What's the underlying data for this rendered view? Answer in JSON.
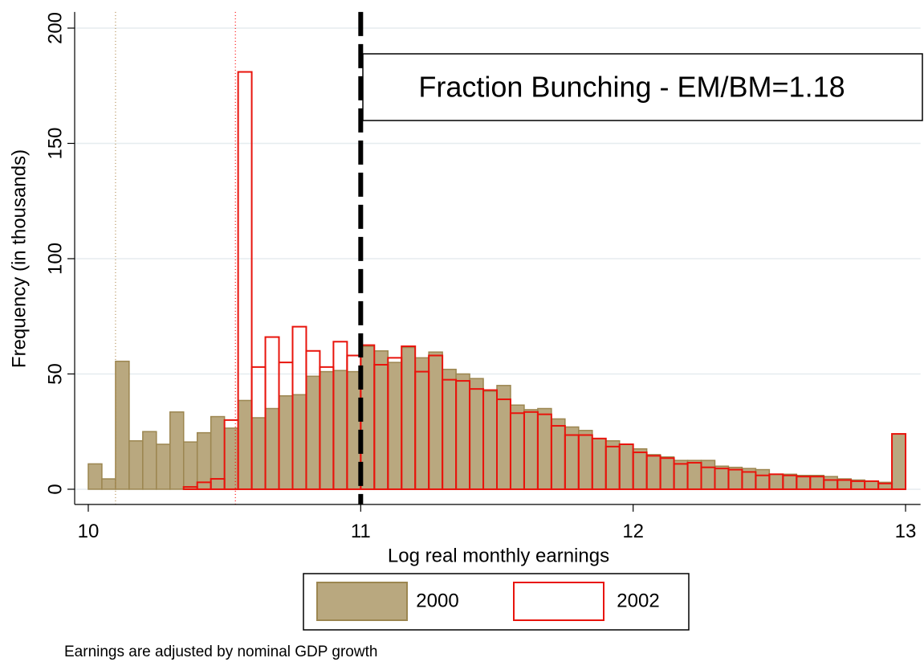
{
  "chart_data": {
    "type": "histogram",
    "x_label": "Log real monthly earnings",
    "y_label": "Frequency (in thousands)",
    "annotation": "Fraction Bunching - EM/BM=1.18",
    "note": "Earnings are adjusted by nominal GDP growth",
    "bins": [
      10,
      10.05,
      10.1,
      10.15,
      10.2,
      10.25,
      10.3,
      10.35,
      10.4,
      10.45,
      10.5,
      10.55,
      10.6,
      10.65,
      10.7,
      10.75,
      10.8,
      10.85,
      10.9,
      10.95,
      11,
      11.05,
      11.1,
      11.15,
      11.2,
      11.25,
      11.3,
      11.35,
      11.4,
      11.45,
      11.5,
      11.55,
      11.6,
      11.65,
      11.7,
      11.75,
      11.8,
      11.85,
      11.9,
      11.95,
      12,
      12.05,
      12.1,
      12.15,
      12.2,
      12.25,
      12.3,
      12.35,
      12.4,
      12.45,
      12.5,
      12.55,
      12.6,
      12.65,
      12.7,
      12.75,
      12.8,
      12.85,
      12.9,
      12.95,
      13
    ],
    "series": [
      {
        "name": "2000",
        "color": "#b9a87f",
        "edge_color": "#9c8650",
        "filled": true,
        "values": [
          11,
          4.5,
          55.5,
          21,
          25,
          19.5,
          33.5,
          20.5,
          24.5,
          31.5,
          26.5,
          38.5,
          31,
          35,
          40.5,
          41,
          49,
          51,
          51.5,
          51,
          62,
          60,
          55,
          61.5,
          57,
          59.5,
          52,
          50,
          48,
          42.5,
          45,
          36.5,
          34.5,
          35,
          30.5,
          27,
          25.5,
          22,
          21,
          19.5,
          17.5,
          15,
          14,
          12.5,
          12.5,
          12.5,
          10,
          9.5,
          9,
          8.5,
          6.5,
          6.5,
          6,
          6,
          5.5,
          4.5,
          4,
          3.5,
          3,
          24
        ]
      },
      {
        "name": "2002",
        "color": "#ff0000",
        "edge_color": "#e8140c",
        "filled": false,
        "values": [
          0,
          0,
          0,
          0,
          0,
          0,
          0,
          1,
          3,
          4.5,
          30,
          181,
          53,
          66,
          55,
          70.5,
          60,
          53,
          64,
          58,
          62.5,
          54,
          57,
          62,
          51,
          58,
          47.5,
          47,
          43.5,
          43,
          39,
          33,
          33.5,
          32.5,
          27.5,
          23.5,
          23.5,
          22,
          18.5,
          19.5,
          16,
          14.5,
          13.5,
          11,
          11.5,
          9.5,
          9,
          8.5,
          7.5,
          6,
          6.5,
          6,
          5.5,
          5.5,
          4,
          4,
          3.5,
          3.5,
          2.5,
          24
        ]
      }
    ],
    "vlines": [
      {
        "x": 10.1,
        "color": "#b08a50",
        "style": "dotted"
      },
      {
        "x": 10.54,
        "color": "#ff0000",
        "style": "dotted"
      },
      {
        "x": 11,
        "color": "#000000",
        "style": "dashed"
      }
    ],
    "xlim": [
      9.95,
      13.055
    ],
    "ylim": [
      -6.6,
      207
    ],
    "xticks": [
      10,
      11,
      12,
      13
    ],
    "yticks": [
      0,
      50,
      100,
      150,
      200
    ],
    "grid": true
  }
}
